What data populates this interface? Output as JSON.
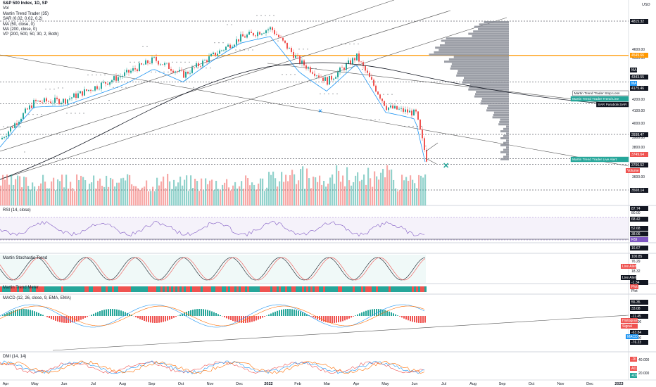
{
  "header": {
    "symbol_line": "S&P 500 Index, 1D, SP",
    "currency": "USD",
    "legend": [
      "Vol",
      "Martin Trend Trader (35)",
      "SAR (0.02, 0.02, 0.2)",
      "MA (50, close, 0)",
      "MA (200, close, 0)",
      "VP (200, 500, 50, 30, 2, Both)"
    ]
  },
  "price_axis": {
    "ticks": [
      "4600.00",
      "4500.00",
      "4200.00",
      "4100.00",
      "4000.00",
      "3900.00",
      "3800.00",
      "3600.00"
    ],
    "labels": [
      {
        "text": "4815.32",
        "bg": "#131722",
        "fg": "#ffffff"
      },
      {
        "text": "4549.66",
        "bg": "#ff9800",
        "fg": "#ffffff"
      },
      {
        "text": "4343.55",
        "bg": "#131722",
        "fg": "#ffffff"
      },
      {
        "text": "4175.46",
        "bg": "#131722",
        "fg": "#ffffff"
      },
      {
        "text": "3938.47",
        "bg": "#131722",
        "fg": "#ffffff"
      },
      {
        "text": "3749.64",
        "bg": "#ef5350",
        "fg": "#ffffff"
      },
      {
        "text": "3706.52",
        "bg": "#131722",
        "fg": "#ffffff"
      },
      {
        "text": "3508.14",
        "bg": "#131722",
        "fg": "#ffffff"
      }
    ],
    "ma_tags": [
      {
        "text": "MA",
        "bg": "#131722"
      },
      {
        "text": "MA",
        "bg": "#2196f3"
      }
    ],
    "volume_tag": {
      "text": "Volume",
      "bg": "#ef5350"
    }
  },
  "callouts": [
    {
      "text": "Martin Trend Trader Stop Loss",
      "bg": "#ffffff",
      "fg": "#131722",
      "border": "#131722"
    },
    {
      "text": "Martin Trend Trader Trend Line",
      "bg": "#26a69a",
      "fg": "#ffffff",
      "border": "#26a69a"
    },
    {
      "text": "SAR ParabolicSAR",
      "bg": "#131722",
      "fg": "#ffffff",
      "border": "#131722"
    },
    {
      "text": "Martin Trend Trader Live Alert",
      "bg": "#26a69a",
      "fg": "#ffffff",
      "border": "#26a69a"
    }
  ],
  "rsi_pane": {
    "title": "RSI (14, close)",
    "labels": [
      {
        "text": "87.74",
        "bg": "#131722",
        "fg": "#ffffff"
      },
      {
        "text": "80.00",
        "bg": "none",
        "fg": "#131722"
      },
      {
        "text": "68.42",
        "bg": "#131722",
        "fg": "#ffffff"
      },
      {
        "text": "52.68",
        "bg": "#131722",
        "fg": "#ffffff"
      },
      {
        "text": "38.06",
        "bg": "#131722",
        "fg": "#ffffff"
      },
      {
        "text": "RSI",
        "bg": "#7e57c2",
        "fg": "#ffffff"
      }
    ]
  },
  "stoch_pane": {
    "title": "Martin Stochastic Trend",
    "labels": [
      {
        "text": "16.67",
        "bg": "#131722",
        "fg": "#ffffff"
      },
      {
        "text": "100.85",
        "bg": "#131722",
        "fg": "#ffffff"
      },
      {
        "text": "76.29",
        "bg": "none",
        "fg": "#131722"
      },
      {
        "text": "Live Alert",
        "bg": "#ef5350",
        "fg": "#ffffff"
      },
      {
        "text": "18.32",
        "bg": "none",
        "fg": "#131722"
      },
      {
        "text": "Live Alert",
        "bg": "#131722",
        "fg": "#ffffff"
      },
      {
        "text": "-1.34",
        "bg": "#131722",
        "fg": "#ffffff"
      }
    ]
  },
  "trend_meter": {
    "title": "Martin Trend Meter",
    "labels": [
      {
        "text": "Plot",
        "bg": "#ef5350",
        "fg": "#ffffff"
      },
      {
        "text": "Plot",
        "bg": "none",
        "fg": "#131722"
      }
    ]
  },
  "macd_pane": {
    "title": "MACD (12, 26, close, 9, EMA, EMA)",
    "labels": [
      {
        "text": "55.35",
        "bg": "#131722",
        "fg": "#ffffff"
      },
      {
        "text": "33.08",
        "bg": "#131722",
        "fg": "#ffffff"
      },
      {
        "text": "-11.45",
        "bg": "#131722",
        "fg": "#ffffff"
      },
      {
        "text": "-40.00",
        "bg": "none",
        "fg": "#131722"
      },
      {
        "text": "Histogram",
        "bg": "#ef5350",
        "fg": "#ffffff"
      },
      {
        "text": "Signal",
        "bg": "#ef5350",
        "fg": "#ffffff"
      },
      {
        "text": "-63.84",
        "bg": "#131722",
        "fg": "#ffffff"
      },
      {
        "text": "-80.00",
        "bg": "none",
        "fg": "#131722"
      },
      {
        "text": "MACD",
        "bg": "#2196f3",
        "fg": "#ffffff"
      },
      {
        "text": "-76.23",
        "bg": "#131722",
        "fg": "#ffffff"
      }
    ]
  },
  "dmi_pane": {
    "title": "DMI (14, 14)",
    "labels": [
      {
        "text": "-DI",
        "bg": "#ef5350",
        "fg": "#ffffff"
      },
      {
        "text": "40.000",
        "bg": "none",
        "fg": "#131722"
      },
      {
        "text": "ADX",
        "bg": "#ef5350",
        "fg": "#ffffff"
      },
      {
        "text": "+DI",
        "bg": "#26a69a",
        "fg": "#ffffff"
      },
      {
        "text": "20.000",
        "bg": "none",
        "fg": "#131722"
      }
    ]
  },
  "time_axis": {
    "ticks": [
      "Apr",
      "May",
      "Jun",
      "Jul",
      "Aug",
      "Sep",
      "Oct",
      "Nov",
      "Dec",
      "2022",
      "Feb",
      "Mar",
      "Apr",
      "May",
      "Jun",
      "Jul",
      "Aug",
      "Sep",
      "Oct",
      "Nov",
      "Dec",
      "2023"
    ]
  },
  "colors": {
    "up": "#26a69a",
    "down": "#ef5350",
    "ma50": "#2196f3",
    "ma200": "#131722",
    "vp": "#787b86",
    "poc": "#ff9800",
    "rsi": "#7e57c2",
    "macd": "#2196f3",
    "signal": "#ff6d00"
  },
  "chart_data": {
    "type": "candlestick",
    "symbol": "S&P 500 Index",
    "interval": "1D",
    "ylim": [
      3500,
      4830
    ],
    "key_levels": [
      4815.32,
      4549.66,
      4343.55,
      4175.46,
      3938.47,
      3749.64,
      3706.52,
      3508.14
    ],
    "monthly_close_path": {
      "x": [
        "2021-03",
        "2021-04",
        "2021-05",
        "2021-06",
        "2021-07",
        "2021-08",
        "2021-09",
        "2021-10",
        "2021-11",
        "2021-12",
        "2022-01",
        "2022-02",
        "2022-03",
        "2022-04",
        "2022-05",
        "2022-06"
      ],
      "y": [
        3900,
        4190,
        4200,
        4300,
        4400,
        4520,
        4400,
        4550,
        4690,
        4760,
        4500,
        4350,
        4540,
        4150,
        4100,
        3750
      ]
    }
  }
}
